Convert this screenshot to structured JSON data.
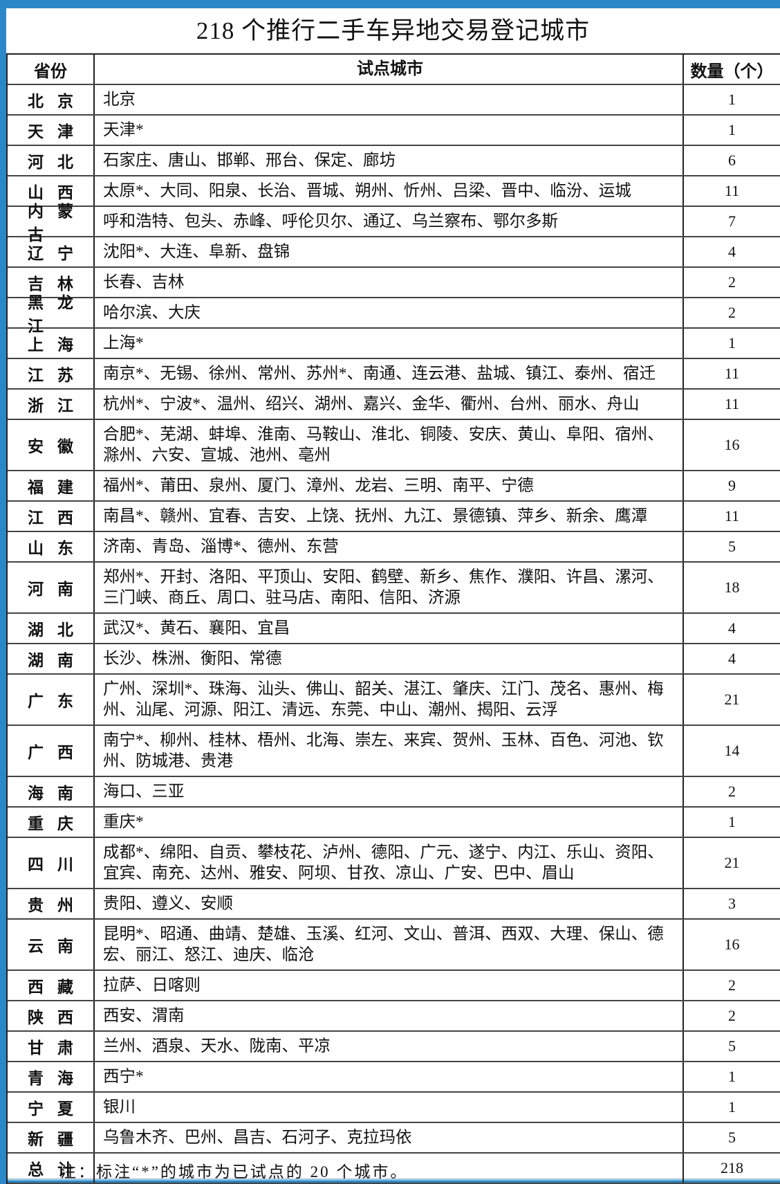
{
  "title": "218 个推行二手车异地交易登记城市",
  "headers": {
    "province": "省份",
    "cities": "试点城市",
    "count": "数量（个）"
  },
  "colors": {
    "frame": "#2b87c8"
  },
  "rows": [
    {
      "province": "北京",
      "cities": "北京",
      "count": "1"
    },
    {
      "province": "天津",
      "cities": "天津*",
      "count": "1"
    },
    {
      "province": "河北",
      "cities": "石家庄、唐山、邯郸、邢台、保定、廊坊",
      "count": "6"
    },
    {
      "province": "山西",
      "cities": "太原*、大同、阳泉、长治、晋城、朔州、忻州、吕梁、晋中、临汾、运城",
      "count": "11"
    },
    {
      "province": "内蒙古",
      "cities": "呼和浩特、包头、赤峰、呼伦贝尔、通辽、乌兰察布、鄂尔多斯",
      "count": "7"
    },
    {
      "province": "辽宁",
      "cities": "沈阳*、大连、阜新、盘锦",
      "count": "4"
    },
    {
      "province": "吉林",
      "cities": "长春、吉林",
      "count": "2"
    },
    {
      "province": "黑龙江",
      "cities": "哈尔滨、大庆",
      "count": "2"
    },
    {
      "province": "上海",
      "cities": "上海*",
      "count": "1"
    },
    {
      "province": "江苏",
      "cities": "南京*、无锡、徐州、常州、苏州*、南通、连云港、盐城、镇江、泰州、宿迁",
      "count": "11"
    },
    {
      "province": "浙江",
      "cities": "杭州*、宁波*、温州、绍兴、湖州、嘉兴、金华、衢州、台州、丽水、舟山",
      "count": "11"
    },
    {
      "province": "安徽",
      "cities": "合肥*、芜湖、蚌埠、淮南、马鞍山、淮北、铜陵、安庆、黄山、阜阳、宿州、滁州、六安、宣城、池州、亳州",
      "count": "16"
    },
    {
      "province": "福建",
      "cities": "福州*、莆田、泉州、厦门、漳州、龙岩、三明、南平、宁德",
      "count": "9"
    },
    {
      "province": "江西",
      "cities": "南昌*、赣州、宜春、吉安、上饶、抚州、九江、景德镇、萍乡、新余、鹰潭",
      "count": "11"
    },
    {
      "province": "山东",
      "cities": "济南、青岛、淄博*、德州、东营",
      "count": "5"
    },
    {
      "province": "河南",
      "cities": "郑州*、开封、洛阳、平顶山、安阳、鹤壁、新乡、焦作、濮阳、许昌、漯河、三门峡、商丘、周口、驻马店、南阳、信阳、济源",
      "count": "18"
    },
    {
      "province": "湖北",
      "cities": "武汉*、黄石、襄阳、宜昌",
      "count": "4"
    },
    {
      "province": "湖南",
      "cities": "长沙、株洲、衡阳、常德",
      "count": "4"
    },
    {
      "province": "广东",
      "cities": "广州、深圳*、珠海、汕头、佛山、韶关、湛江、肇庆、江门、茂名、惠州、梅州、汕尾、河源、阳江、清远、东莞、中山、潮州、揭阳、云浮",
      "count": "21"
    },
    {
      "province": "广西",
      "cities": "南宁*、柳州、桂林、梧州、北海、崇左、来宾、贺州、玉林、百色、河池、钦州、防城港、贵港",
      "count": "14"
    },
    {
      "province": "海南",
      "cities": "海口、三亚",
      "count": "2"
    },
    {
      "province": "重庆",
      "cities": "重庆*",
      "count": "1"
    },
    {
      "province": "四川",
      "cities": "成都*、绵阳、自贡、攀枝花、泸州、德阳、广元、遂宁、内江、乐山、资阳、宜宾、南充、达州、雅安、阿坝、甘孜、凉山、广安、巴中、眉山",
      "count": "21"
    },
    {
      "province": "贵州",
      "cities": "贵阳、遵义、安顺",
      "count": "3"
    },
    {
      "province": "云南",
      "cities": "昆明*、昭通、曲靖、楚雄、玉溪、红河、文山、普洱、西双、大理、保山、德宏、丽江、怒江、迪庆、临沧",
      "count": "16"
    },
    {
      "province": "西藏",
      "cities": "拉萨、日喀则",
      "count": "2"
    },
    {
      "province": "陕西",
      "cities": "西安、渭南",
      "count": "2"
    },
    {
      "province": "甘肃",
      "cities": "兰州、酒泉、天水、陇南、平凉",
      "count": "5"
    },
    {
      "province": "青海",
      "cities": "西宁*",
      "count": "1"
    },
    {
      "province": "宁夏",
      "cities": "银川",
      "count": "1"
    },
    {
      "province": "新疆",
      "cities": "乌鲁木齐、巴州、昌吉、石河子、克拉玛依",
      "count": "5"
    }
  ],
  "total": {
    "label": "总计",
    "count": "218"
  },
  "note": "注：标注“*”的城市为已试点的 20 个城市。"
}
